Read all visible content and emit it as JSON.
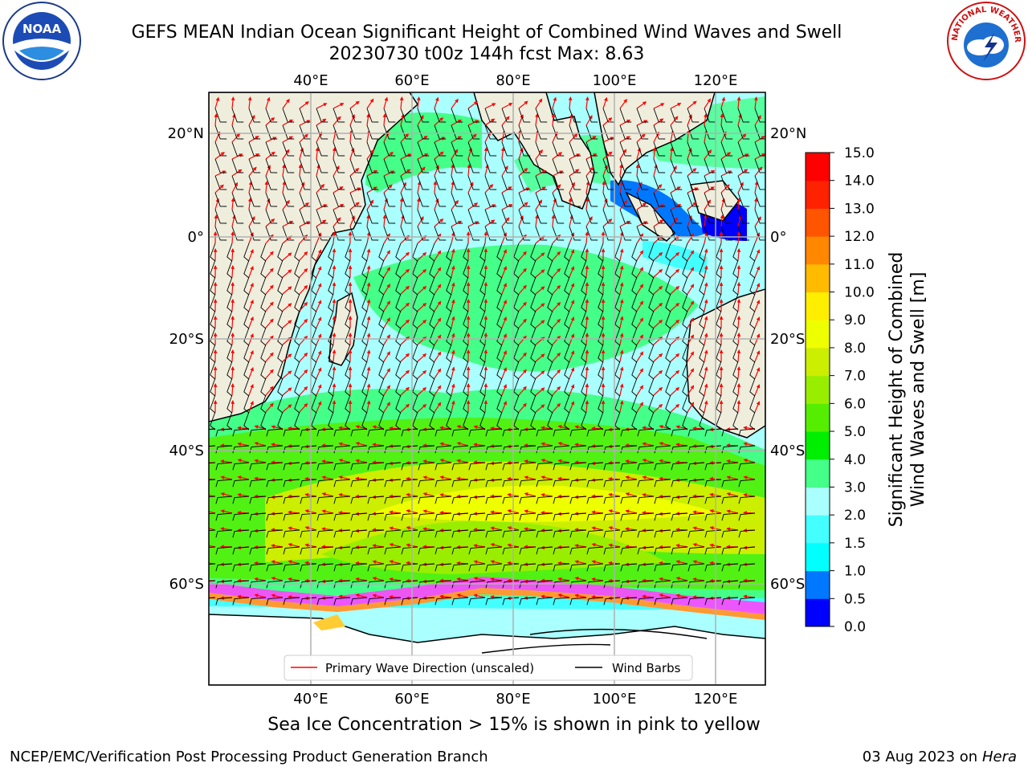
{
  "title": {
    "line1": "GEFS MEAN Indian Ocean Significant Height of Combined Wind Waves and Swell",
    "line2": "20230730 t00z 144h fcst   Max: 8.63"
  },
  "map": {
    "lon_labels": [
      "40°E",
      "60°E",
      "80°E",
      "100°E",
      "120°E"
    ],
    "lat_labels": [
      "20°N",
      "0°",
      "20°S",
      "40°S",
      "60°S"
    ],
    "legend": {
      "wave_label": "Primary Wave Direction (unscaled)",
      "wind_label": "Wind Barbs",
      "wave_color": "#ff0000",
      "wind_color": "#000000"
    },
    "land_color": "#efeedd",
    "ice_colors": [
      "#ff44ff",
      "#ff9933",
      "#ffcc33"
    ]
  },
  "colorbar": {
    "label_line1": "Significant Height of Combined",
    "label_line2": "Wind Waves and Swell [m]",
    "ticks": [
      "0.0",
      "0.5",
      "1.0",
      "1.5",
      "2.0",
      "3.0",
      "4.0",
      "5.0",
      "6.0",
      "7.0",
      "8.0",
      "9.0",
      "10.0",
      "11.0",
      "12.0",
      "13.0",
      "14.0",
      "15.0"
    ],
    "colors": [
      "#0000ff",
      "#0077ff",
      "#00ffff",
      "#44ffff",
      "#aaffff",
      "#44ff88",
      "#00ee00",
      "#55ee00",
      "#99ee00",
      "#ccee00",
      "#eeff00",
      "#ffee00",
      "#ffbb00",
      "#ff8800",
      "#ff5500",
      "#ff2200",
      "#ff0000"
    ]
  },
  "caption": "Sea Ice Concentration > 15% is shown in pink to yellow",
  "footer": {
    "left": "NCEP/EMC/Verification Post Processing Product Generation Branch",
    "date": "03 Aug 2023 on",
    "machine": "Hera"
  },
  "logos": {
    "noaa_text": "NOAA",
    "nws_text": "NATIONAL WEATHER SERVICE"
  }
}
